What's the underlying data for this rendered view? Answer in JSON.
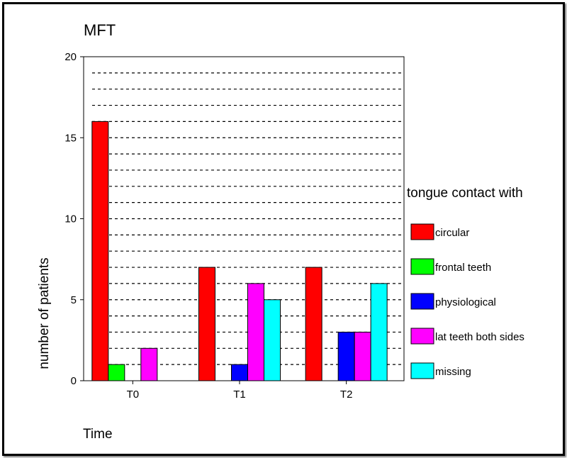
{
  "chart_data": {
    "type": "bar",
    "title": "MFT",
    "xlabel": "Time",
    "ylabel": "number of patients",
    "categories": [
      "T0",
      "T1",
      "T2"
    ],
    "ylim": [
      0,
      20
    ],
    "yticks": [
      0,
      5,
      10,
      15,
      20
    ],
    "grid": "horizontal dashed, every 1 unit",
    "legend": {
      "title": "tongue contact with",
      "placement": "right"
    },
    "series": [
      {
        "name": "circular",
        "color": "#ff0000",
        "values": [
          16,
          7,
          7
        ]
      },
      {
        "name": "frontal teeth",
        "color": "#00ff00",
        "values": [
          1,
          0,
          0
        ]
      },
      {
        "name": "physiological",
        "color": "#0000ff",
        "values": [
          0,
          1,
          3
        ]
      },
      {
        "name": "lat teeth both sides",
        "color": "#ff00ff",
        "values": [
          2,
          6,
          3
        ]
      },
      {
        "name": "missing",
        "color": "#00ffff",
        "values": [
          0,
          5,
          6
        ]
      }
    ]
  }
}
